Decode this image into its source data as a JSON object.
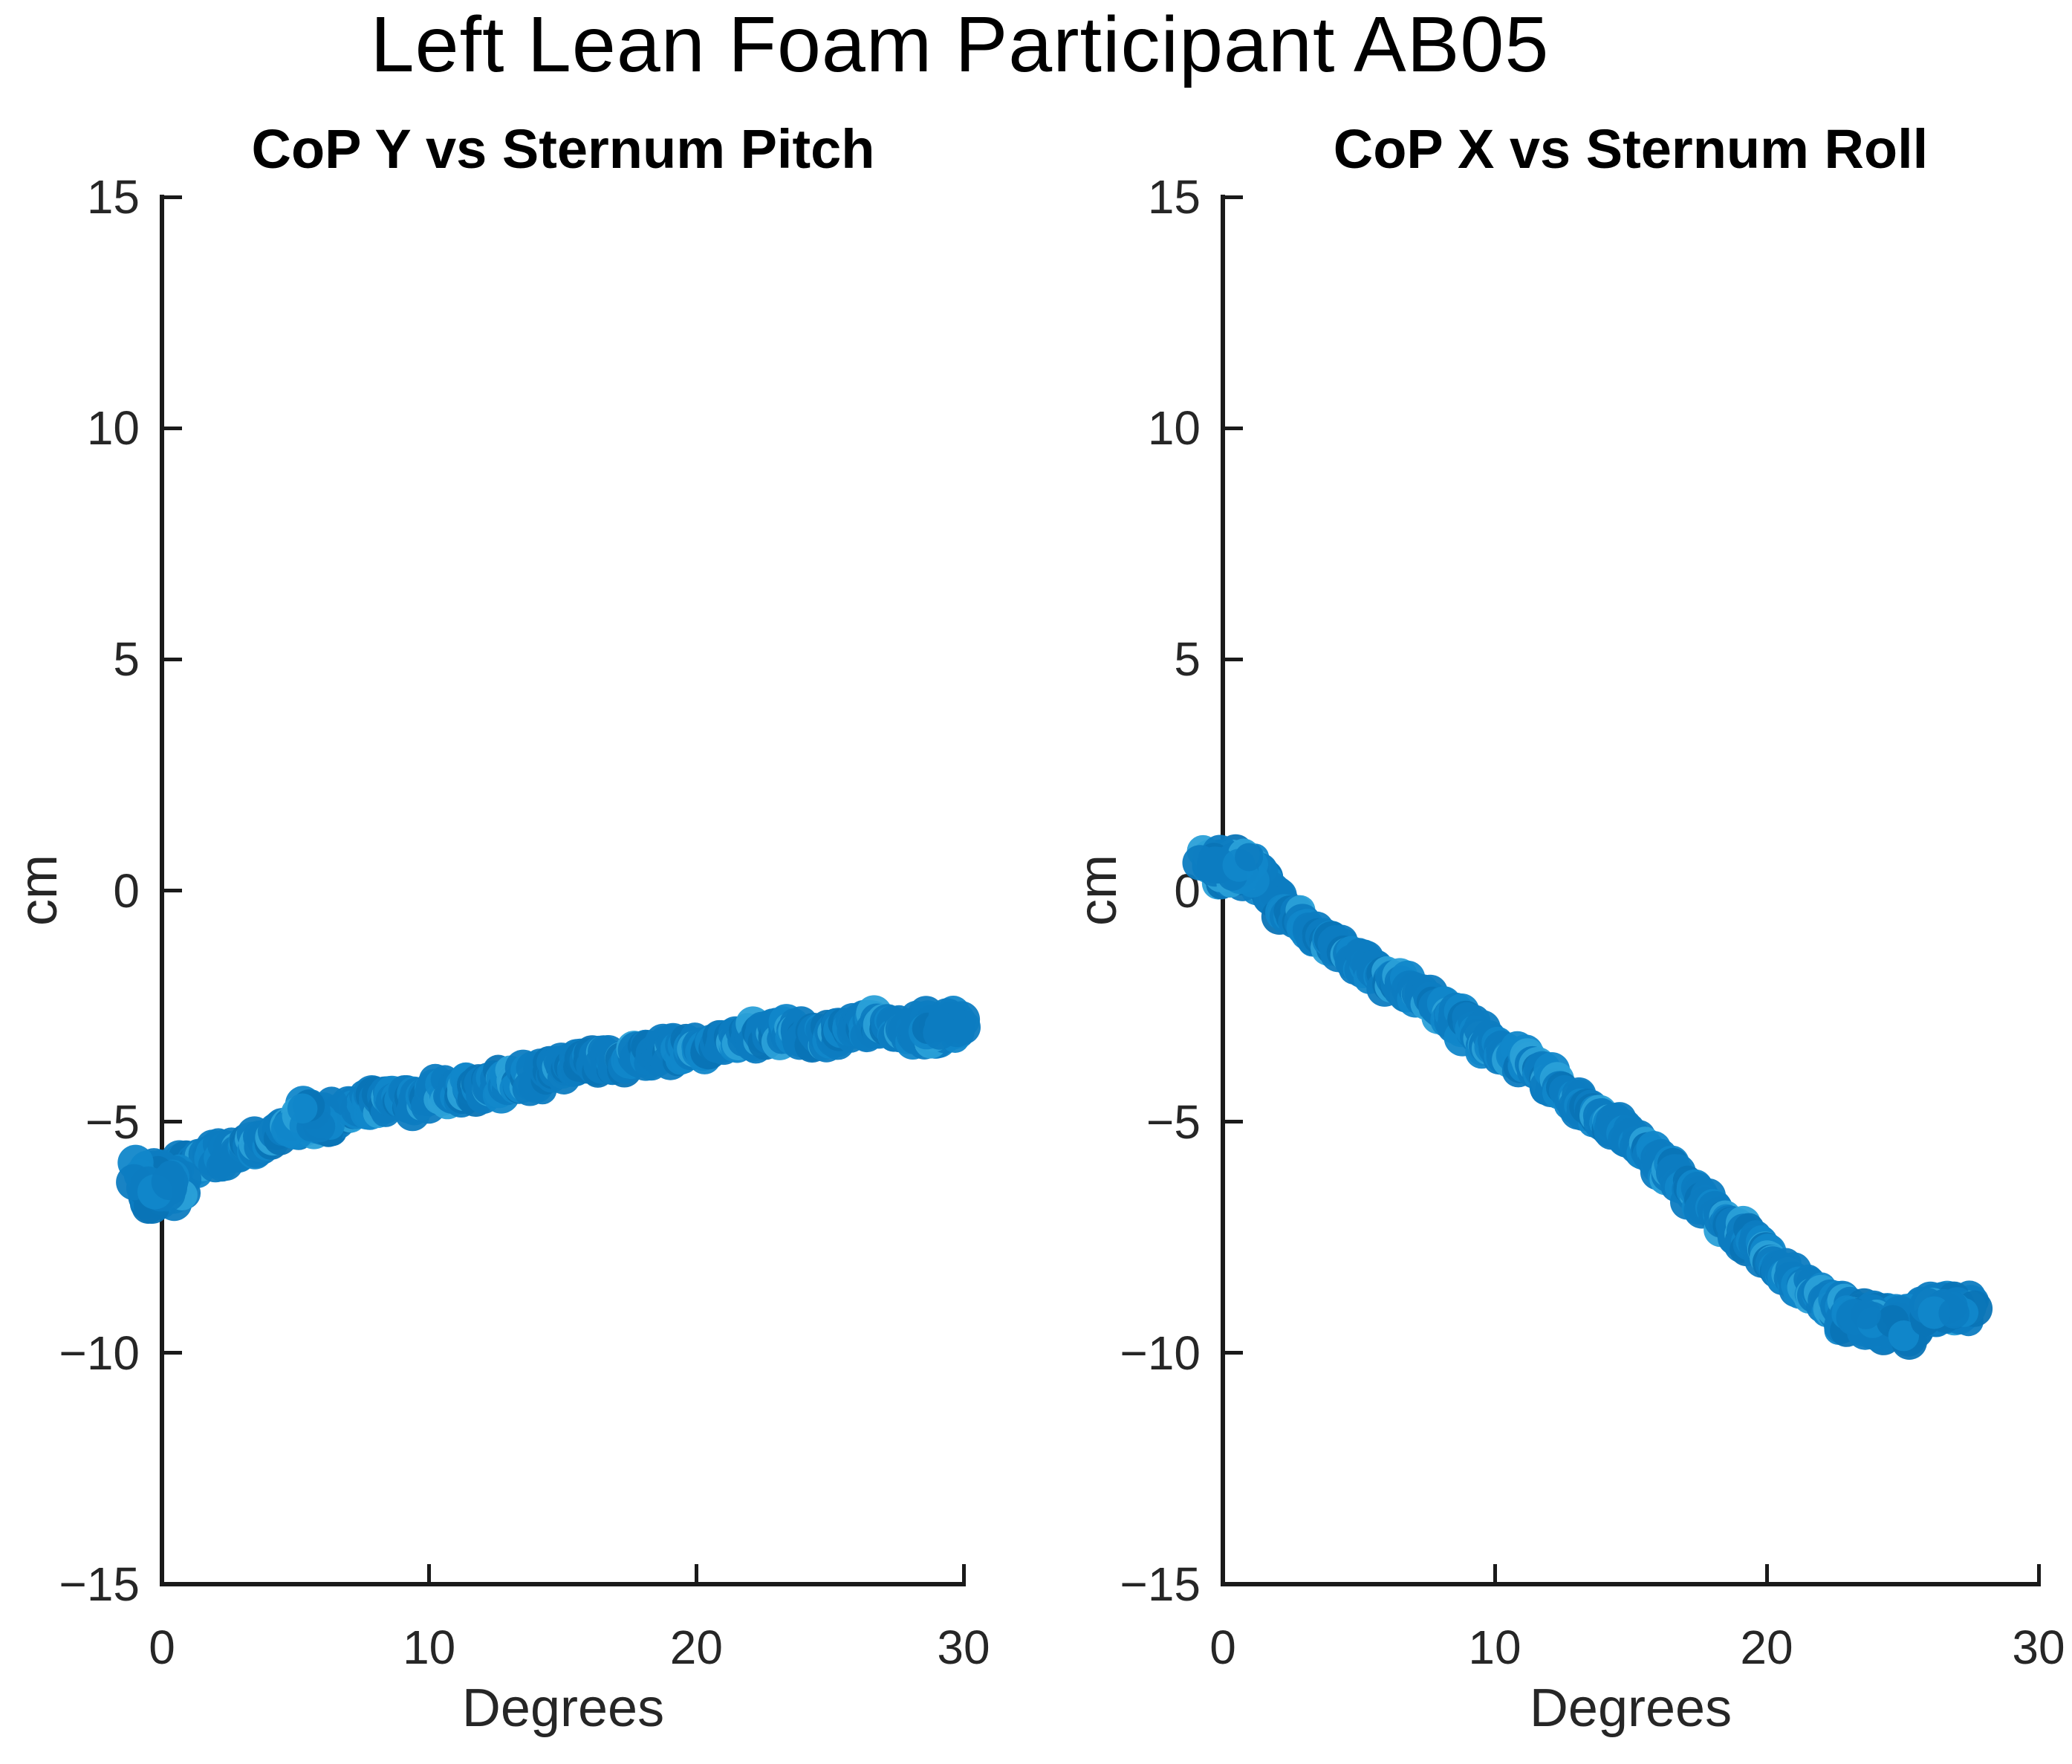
{
  "figure": {
    "title": "Left Lean Foam Participant AB05"
  },
  "chart_data": [
    {
      "type": "scatter",
      "title": "CoP Y vs Sternum Pitch",
      "xlabel": "Degrees",
      "ylabel": "cm",
      "xlim": [
        0,
        30
      ],
      "ylim": [
        -15,
        15
      ],
      "x_ticks": [
        0,
        10,
        20,
        30
      ],
      "y_ticks": [
        -15,
        -10,
        -5,
        0,
        5,
        10,
        15
      ],
      "grid": false,
      "legend": null,
      "marker_colors": [
        "#0d7cc1",
        "#1187ca",
        "#0a74b6",
        "#2aa0d8"
      ],
      "trend": [
        [
          -0.6,
          -6.1
        ],
        [
          0,
          -6.3
        ],
        [
          0.7,
          -5.95
        ],
        [
          1.4,
          -5.85
        ],
        [
          2.2,
          -5.7
        ],
        [
          3,
          -5.55
        ],
        [
          3.8,
          -5.45
        ],
        [
          4.6,
          -5.2
        ],
        [
          5.4,
          -4.95
        ],
        [
          6.2,
          -5.1
        ],
        [
          7,
          -4.8
        ],
        [
          7.8,
          -4.6
        ],
        [
          8.6,
          -4.5
        ],
        [
          9.4,
          -4.55
        ],
        [
          10.2,
          -4.4
        ],
        [
          11,
          -4.3
        ],
        [
          12,
          -4.25
        ],
        [
          13,
          -4.1
        ],
        [
          14,
          -4.1
        ],
        [
          15.2,
          -3.8
        ],
        [
          16,
          -3.7
        ],
        [
          17,
          -3.65
        ],
        [
          18,
          -3.55
        ],
        [
          19,
          -3.45
        ],
        [
          20,
          -3.4
        ],
        [
          21,
          -3.35
        ],
        [
          21.8,
          -3.25
        ],
        [
          22.6,
          -3.05
        ],
        [
          23.4,
          -3.0
        ],
        [
          24.2,
          -3.2
        ],
        [
          25,
          -3.1
        ],
        [
          25.8,
          -2.95
        ],
        [
          26.6,
          -2.9
        ],
        [
          27.4,
          -3.0
        ],
        [
          28.2,
          -3.15
        ],
        [
          28.8,
          -3.05
        ],
        [
          29.6,
          -2.95
        ]
      ],
      "band_sigma_cm": 0.3,
      "sample_step_deg": 0.06,
      "clusters": [
        {
          "x": -0.1,
          "y": -6.35,
          "sx": 0.5,
          "sy": 0.3,
          "n": 80
        },
        {
          "x": 5.5,
          "y": -4.95,
          "sx": 0.55,
          "sy": 0.2,
          "n": 30
        },
        {
          "x": 29.1,
          "y": -2.95,
          "sx": 0.55,
          "sy": 0.18,
          "n": 50
        }
      ]
    },
    {
      "type": "scatter",
      "title": "CoP X vs Sternum Roll",
      "xlabel": "Degrees",
      "ylabel": "cm",
      "xlim": [
        0,
        30
      ],
      "ylim": [
        -15,
        15
      ],
      "x_ticks": [
        0,
        10,
        20,
        30
      ],
      "y_ticks": [
        -15,
        -10,
        -5,
        0,
        5,
        10,
        15
      ],
      "grid": false,
      "legend": null,
      "marker_colors": [
        "#0d7cc1",
        "#1187ca",
        "#0a74b6",
        "#2aa0d8"
      ],
      "trend": [
        [
          -0.4,
          0.55
        ],
        [
          0.4,
          0.5
        ],
        [
          1,
          0.4
        ],
        [
          1.6,
          0.1
        ],
        [
          2.2,
          -0.35
        ],
        [
          2.8,
          -0.65
        ],
        [
          3.4,
          -0.9
        ],
        [
          4.2,
          -1.25
        ],
        [
          5,
          -1.5
        ],
        [
          5.8,
          -1.8
        ],
        [
          6.6,
          -2.1
        ],
        [
          7.4,
          -2.3
        ],
        [
          8.2,
          -2.6
        ],
        [
          9,
          -3.0
        ],
        [
          9.8,
          -3.3
        ],
        [
          10.6,
          -3.55
        ],
        [
          11.4,
          -3.8
        ],
        [
          12.2,
          -4.2
        ],
        [
          13,
          -4.55
        ],
        [
          13.8,
          -4.85
        ],
        [
          14.6,
          -5.15
        ],
        [
          15.4,
          -5.55
        ],
        [
          16.2,
          -5.95
        ],
        [
          17,
          -6.4
        ],
        [
          17.8,
          -6.8
        ],
        [
          18.6,
          -7.2
        ],
        [
          19.4,
          -7.55
        ],
        [
          20.2,
          -8.0
        ],
        [
          21,
          -8.4
        ],
        [
          21.8,
          -8.7
        ],
        [
          22.6,
          -8.95
        ],
        [
          23.4,
          -9.2
        ],
        [
          24.2,
          -9.4
        ],
        [
          25,
          -9.35
        ],
        [
          25.6,
          -9.15
        ],
        [
          26.2,
          -9.0
        ],
        [
          26.9,
          -8.95
        ],
        [
          27.5,
          -9.05
        ]
      ],
      "band_sigma_cm": 0.3,
      "sample_step_deg": 0.06,
      "clusters": [
        {
          "x": 0.3,
          "y": 0.5,
          "sx": 0.6,
          "sy": 0.2,
          "n": 90
        },
        {
          "x": 24.2,
          "y": -9.35,
          "sx": 0.85,
          "sy": 0.22,
          "n": 70
        },
        {
          "x": 26.8,
          "y": -9.0,
          "sx": 0.6,
          "sy": 0.18,
          "n": 45
        }
      ]
    }
  ],
  "style": {
    "axis_color": "#1a1a1a",
    "label_color": "#262626",
    "title_color": "#000000",
    "background": "#ffffff"
  }
}
